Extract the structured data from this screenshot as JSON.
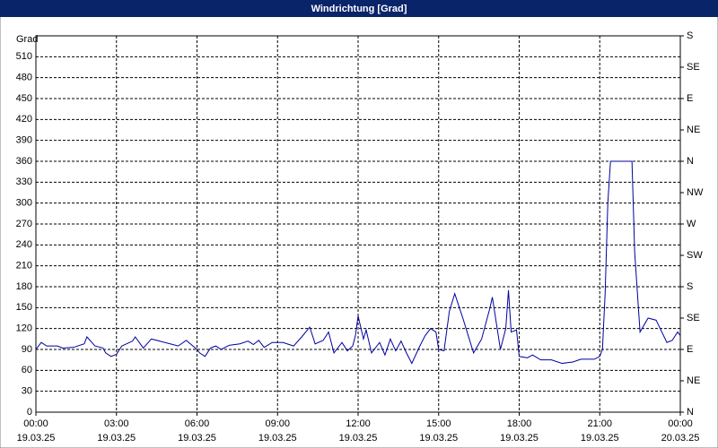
{
  "chart_data": {
    "type": "line",
    "title": "Windrichtung [Grad]",
    "y_label": "Grad",
    "xlim": [
      0,
      24
    ],
    "xticks": [
      {
        "value": 0,
        "label": "00:00",
        "date": "19.03.25"
      },
      {
        "value": 3,
        "label": "03:00",
        "date": "19.03.25"
      },
      {
        "value": 6,
        "label": "06:00",
        "date": "19.03.25"
      },
      {
        "value": 9,
        "label": "09:00",
        "date": "19.03.25"
      },
      {
        "value": 12,
        "label": "12:00",
        "date": "19.03.25"
      },
      {
        "value": 15,
        "label": "15:00",
        "date": "19.03.25"
      },
      {
        "value": 18,
        "label": "18:00",
        "date": "19.03.25"
      },
      {
        "value": 21,
        "label": "21:00",
        "date": "19.03.25"
      },
      {
        "value": 24,
        "label": "00:00",
        "date": "20.03.25"
      }
    ],
    "ylim": [
      0,
      540
    ],
    "yticks": [
      0,
      30,
      60,
      90,
      120,
      150,
      180,
      210,
      240,
      270,
      300,
      330,
      360,
      390,
      420,
      450,
      480,
      510
    ],
    "y2lim": [
      0,
      540
    ],
    "y2ticks": [
      {
        "value": 0,
        "label": "N"
      },
      {
        "value": 45,
        "label": "NE"
      },
      {
        "value": 90,
        "label": "E"
      },
      {
        "value": 135,
        "label": "SE"
      },
      {
        "value": 180,
        "label": "S"
      },
      {
        "value": 225,
        "label": "SW"
      },
      {
        "value": 270,
        "label": "W"
      },
      {
        "value": 315,
        "label": "NW"
      },
      {
        "value": 360,
        "label": "N"
      },
      {
        "value": 405,
        "label": "NE"
      },
      {
        "value": 450,
        "label": "E"
      },
      {
        "value": 495,
        "label": "SE"
      },
      {
        "value": 540,
        "label": "S"
      }
    ],
    "grid": true,
    "series": [
      {
        "name": "Windrichtung",
        "color": "#0000a0",
        "x": [
          0.0,
          0.2,
          0.4,
          0.8,
          1.0,
          1.4,
          1.8,
          1.9,
          2.2,
          2.5,
          2.6,
          2.8,
          3.0,
          3.2,
          3.6,
          3.7,
          4.0,
          4.3,
          4.6,
          5.0,
          5.3,
          5.6,
          6.0,
          6.1,
          6.3,
          6.5,
          6.7,
          6.9,
          7.2,
          7.6,
          7.9,
          8.1,
          8.3,
          8.5,
          8.8,
          9.2,
          9.6,
          9.9,
          10.2,
          10.4,
          10.7,
          10.9,
          11.1,
          11.4,
          11.6,
          11.8,
          11.9,
          12.0,
          12.2,
          12.3,
          12.5,
          12.8,
          13.0,
          13.2,
          13.4,
          13.6,
          13.8,
          14.0,
          14.3,
          14.5,
          14.7,
          14.9,
          15.0,
          15.2,
          15.4,
          15.6,
          15.9,
          16.1,
          16.3,
          16.6,
          16.9,
          17.0,
          17.3,
          17.5,
          17.6,
          17.7,
          17.9,
          18.0,
          18.3,
          18.5,
          18.8,
          19.2,
          19.6,
          20.0,
          20.3,
          20.8,
          21.0,
          21.1,
          21.2,
          21.3,
          21.4,
          22.2,
          22.3,
          22.5,
          22.8,
          23.1,
          23.5,
          23.7,
          23.9,
          24.0
        ],
        "values": [
          90,
          100,
          95,
          95,
          92,
          93,
          98,
          108,
          95,
          92,
          85,
          80,
          83,
          95,
          102,
          108,
          92,
          105,
          102,
          98,
          95,
          103,
          90,
          85,
          80,
          92,
          95,
          90,
          96,
          98,
          102,
          97,
          103,
          93,
          100,
          100,
          95,
          108,
          122,
          98,
          103,
          115,
          85,
          100,
          88,
          95,
          110,
          138,
          105,
          118,
          85,
          100,
          82,
          105,
          88,
          102,
          85,
          70,
          95,
          110,
          120,
          115,
          90,
          88,
          145,
          170,
          135,
          110,
          85,
          105,
          148,
          165,
          90,
          120,
          175,
          115,
          118,
          80,
          78,
          82,
          75,
          75,
          70,
          72,
          76,
          76,
          80,
          90,
          170,
          300,
          360,
          360,
          230,
          115,
          135,
          132,
          100,
          103,
          115,
          110
        ]
      }
    ]
  }
}
